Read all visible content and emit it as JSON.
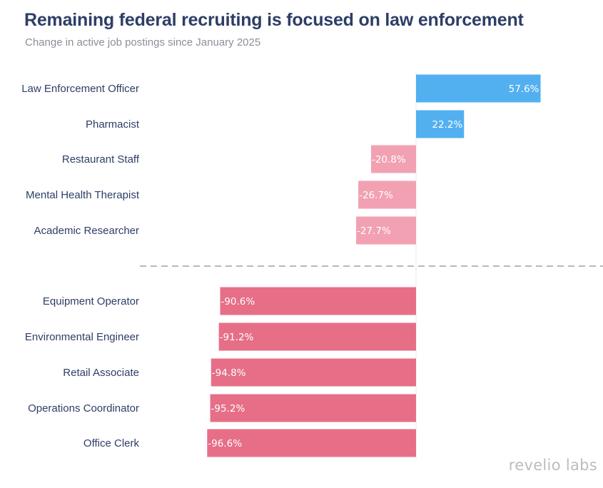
{
  "title": "Remaining federal recruiting is focused on law enforcement",
  "subtitle": "Change in active job postings since January 2025",
  "logo": "revelio labs",
  "colors": {
    "positive": "#52b0f0",
    "negative_small": "#f2a1b3",
    "negative_large": "#e66f87",
    "label": "#2d3e66",
    "divider": "#8a8f98"
  },
  "chart_data": {
    "type": "bar",
    "orientation": "horizontal",
    "grid": false,
    "categories": [
      "Law Enforcement Officer",
      "Pharmacist",
      "Restaurant Staff",
      "Mental Health Therapist",
      "Academic Researcher",
      "Equipment Operator",
      "Environmental Engineer",
      "Retail Associate",
      "Operations Coordinator",
      "Office Clerk"
    ],
    "values": [
      57.6,
      22.2,
      -20.8,
      -26.7,
      -27.7,
      -90.6,
      -91.2,
      -94.8,
      -95.2,
      -96.6
    ],
    "labels": [
      "57.6%",
      "22.2%",
      "-20.8%",
      "-26.7%",
      "-27.7%",
      "-90.6%",
      "-91.2%",
      "-94.8%",
      "-95.2%",
      "-96.6%"
    ],
    "groups": [
      "top",
      "top",
      "top",
      "top",
      "top",
      "bottom",
      "bottom",
      "bottom",
      "bottom",
      "bottom"
    ],
    "unit": "%"
  }
}
